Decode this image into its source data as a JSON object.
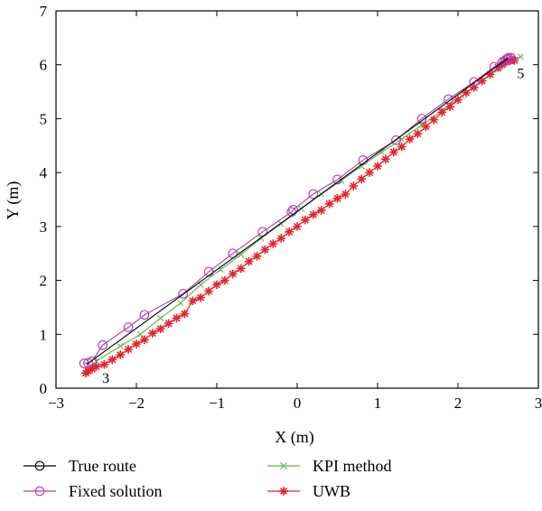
{
  "chart_data": {
    "type": "line",
    "xlabel": "X (m)",
    "ylabel": "Y (m)",
    "xlim": [
      -3,
      3
    ],
    "ylim": [
      0,
      7
    ],
    "xticks": [
      -3,
      -2,
      -1,
      0,
      1,
      2,
      3
    ],
    "yticks": [
      0,
      1,
      2,
      3,
      4,
      5,
      6,
      7
    ],
    "xtick_labels": [
      "−3",
      "−2",
      "−1",
      "0",
      "1",
      "2",
      "3"
    ],
    "ytick_labels": [
      "0",
      "1",
      "2",
      "3",
      "4",
      "5",
      "6",
      "7"
    ],
    "grid": false,
    "legend_position": "below",
    "annotations": [
      {
        "text": "3",
        "x": -2.38,
        "y": 0.1
      },
      {
        "text": "5",
        "x": 2.78,
        "y": 5.75
      }
    ],
    "series": [
      {
        "name": "True route",
        "color": "#000000",
        "marker": "circle",
        "x": [
          -2.62,
          2.62
        ],
        "y": [
          0.44,
          6.12
        ],
        "marker_x": [],
        "marker_y": []
      },
      {
        "name": "Fixed solution",
        "color": "#b03aa6",
        "marker": "circle",
        "x": [
          -2.65,
          -2.6,
          -2.55,
          -2.42,
          -2.1,
          -1.9,
          -1.42,
          -1.1,
          -0.8,
          -0.43,
          -0.07,
          -0.05,
          0.2,
          0.5,
          0.82,
          1.23,
          1.55,
          1.88,
          2.2,
          2.45,
          2.55,
          2.6,
          2.63,
          2.66,
          2.62,
          2.58
        ],
        "y": [
          0.46,
          0.47,
          0.5,
          0.8,
          1.13,
          1.36,
          1.75,
          2.16,
          2.5,
          2.9,
          3.27,
          3.31,
          3.6,
          3.87,
          4.23,
          4.6,
          5.0,
          5.36,
          5.68,
          5.96,
          6.05,
          6.1,
          6.13,
          6.13,
          6.11,
          6.07
        ]
      },
      {
        "name": "KPI method",
        "color": "#58b947",
        "marker": "x",
        "x": [
          -2.6,
          -2.5,
          -2.2,
          -1.95,
          -1.7,
          -1.45,
          -1.2,
          -0.95,
          -0.7,
          -0.45,
          -0.2,
          0.05,
          0.3,
          0.55,
          0.8,
          1.05,
          1.3,
          1.55,
          1.8,
          2.05,
          2.3,
          2.5,
          2.65,
          2.78
        ],
        "y": [
          0.35,
          0.5,
          0.78,
          1.0,
          1.3,
          1.58,
          1.92,
          2.2,
          2.48,
          2.78,
          3.05,
          3.33,
          3.6,
          3.85,
          4.12,
          4.38,
          4.62,
          4.88,
          5.15,
          5.42,
          5.7,
          5.92,
          6.06,
          6.15
        ]
      },
      {
        "name": "UWB",
        "color": "#e8232a",
        "marker": "asterisk",
        "x": [
          -2.63,
          -2.6,
          -2.55,
          -2.5,
          -2.4,
          -2.3,
          -2.2,
          -2.1,
          -2.0,
          -1.9,
          -1.8,
          -1.7,
          -1.6,
          -1.5,
          -1.4,
          -1.3,
          -1.2,
          -1.1,
          -1.0,
          -0.9,
          -0.8,
          -0.7,
          -0.6,
          -0.5,
          -0.4,
          -0.3,
          -0.2,
          -0.1,
          0.0,
          0.1,
          0.2,
          0.3,
          0.4,
          0.5,
          0.6,
          0.7,
          0.8,
          0.9,
          1.0,
          1.1,
          1.2,
          1.3,
          1.4,
          1.5,
          1.6,
          1.7,
          1.8,
          1.9,
          2.0,
          2.1,
          2.2,
          2.3,
          2.4,
          2.5,
          2.55,
          2.6,
          2.65,
          2.7
        ],
        "y": [
          0.28,
          0.32,
          0.36,
          0.4,
          0.44,
          0.53,
          0.62,
          0.72,
          0.82,
          0.9,
          1.02,
          1.1,
          1.2,
          1.3,
          1.38,
          1.62,
          1.68,
          1.8,
          1.92,
          2.0,
          2.12,
          2.22,
          2.35,
          2.45,
          2.57,
          2.68,
          2.78,
          2.9,
          3.0,
          3.12,
          3.22,
          3.3,
          3.42,
          3.52,
          3.6,
          3.75,
          3.88,
          4.0,
          4.12,
          4.25,
          4.38,
          4.48,
          4.62,
          4.72,
          4.85,
          4.98,
          5.12,
          5.22,
          5.35,
          5.48,
          5.58,
          5.7,
          5.82,
          5.95,
          6.0,
          6.05,
          6.08,
          6.08
        ]
      }
    ]
  }
}
